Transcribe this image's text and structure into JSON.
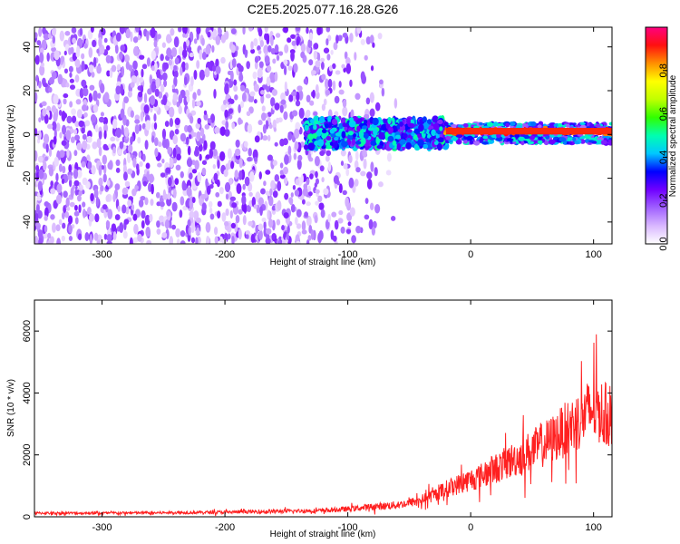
{
  "figure_title": "C2E5.2025.077.16.28.G26",
  "chart_data": [
    {
      "type": "heatmap",
      "xlabel": "Height of straight line (km)",
      "ylabel": "Frequency (Hz)",
      "xlim": [
        -355,
        115
      ],
      "ylim": [
        -50,
        49
      ],
      "xticks": [
        -300,
        -200,
        -100,
        0,
        100
      ],
      "yticks": [
        -40,
        -20,
        0,
        20,
        40
      ],
      "colorbar": {
        "label": "Normalized spectral amplitude",
        "range": [
          0,
          1
        ],
        "ticks": [
          0.0,
          0.2,
          0.4,
          0.6,
          0.8
        ],
        "colormap": [
          "#ffffff",
          "#d9b8ff",
          "#a060ff",
          "#7000ff",
          "#0000ff",
          "#00c8ff",
          "#00ffb0",
          "#30ff00",
          "#c0ff00",
          "#ffff00",
          "#ff9000",
          "#ff1010",
          "#ff0080"
        ]
      },
      "regions": [
        {
          "x_range": [
            -355,
            -135
          ],
          "y_range": [
            -50,
            49
          ],
          "description_level": 0.12
        },
        {
          "x_range": [
            -135,
            -20
          ],
          "y_range": [
            -6,
            7
          ],
          "description_level": 0.35
        },
        {
          "x_range": [
            -20,
            115
          ],
          "y_range": [
            0,
            3
          ],
          "description_level": 0.9
        }
      ],
      "grid": false
    },
    {
      "type": "line",
      "xlabel": "Height of straight line (km)",
      "ylabel": "SNR (10 * v/v)",
      "xlim": [
        -355,
        115
      ],
      "ylim": [
        0,
        7000
      ],
      "xticks": [
        -300,
        -200,
        -100,
        0,
        100
      ],
      "yticks": [
        0,
        2000,
        4000,
        6000
      ],
      "series": [
        {
          "color": "#ff2020",
          "x": [
            -355,
            -300,
            -250,
            -200,
            -150,
            -120,
            -100,
            -80,
            -60,
            -50,
            -40,
            -30,
            -20,
            -10,
            0,
            10,
            20,
            30,
            40,
            50,
            60,
            70,
            80,
            90,
            100,
            105,
            110,
            115
          ],
          "values": [
            120,
            120,
            130,
            150,
            180,
            200,
            250,
            320,
            380,
            450,
            550,
            700,
            900,
            1050,
            1200,
            1350,
            1550,
            1750,
            1950,
            2150,
            2350,
            2600,
            2900,
            3200,
            3500,
            3400,
            3300,
            3200
          ]
        }
      ],
      "grid": false
    }
  ]
}
